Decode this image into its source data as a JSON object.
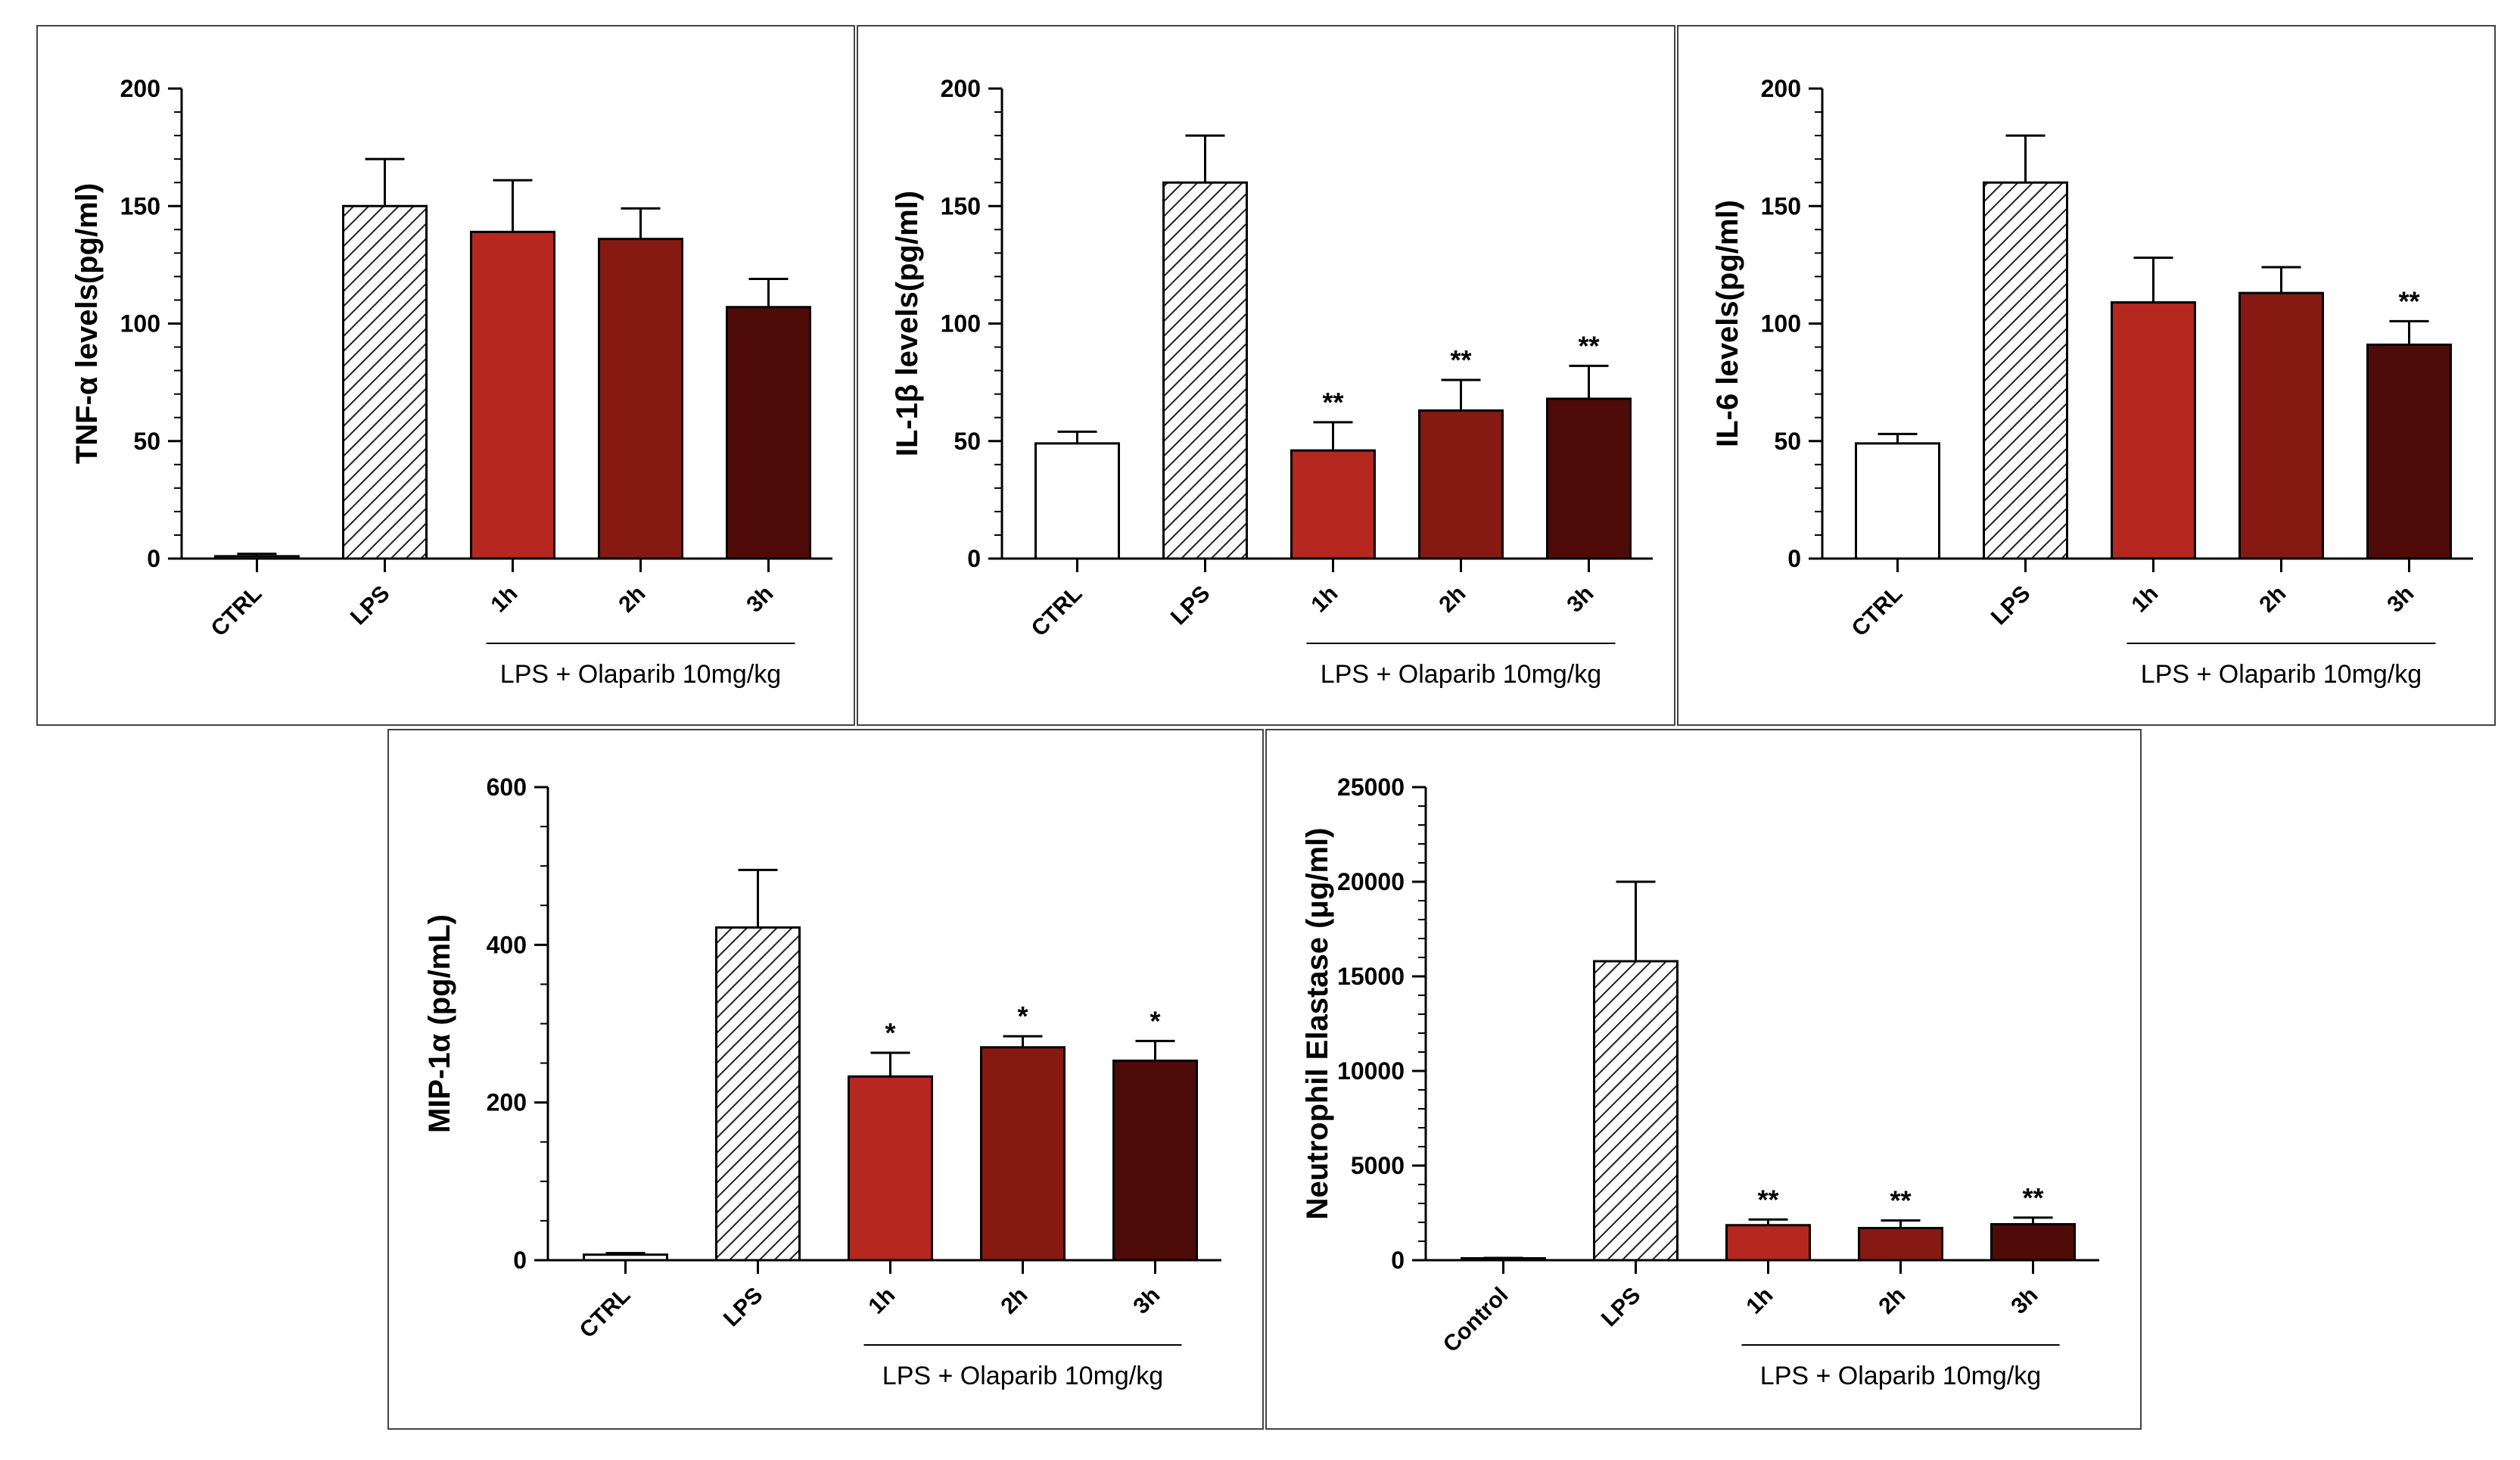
{
  "colors": {
    "ctrl": "#ffffff",
    "h1": "#b5271f",
    "h2": "#861911",
    "h3": "#4f0b08",
    "axis": "#000000",
    "hatch": "#222222"
  },
  "chart_data": [
    {
      "type": "bar",
      "ylabel": "TNF-α levels(pg/ml)",
      "categories": [
        "CTRL",
        "LPS",
        "1h",
        "2h",
        "3h"
      ],
      "values": [
        1,
        150,
        139,
        136,
        107
      ],
      "errors": [
        1,
        20,
        22,
        13,
        12
      ],
      "significance": [
        "",
        "",
        "",
        "",
        ""
      ],
      "yticks": [
        "0",
        "50",
        "100",
        "150",
        "200"
      ],
      "ylim": [
        0,
        200
      ],
      "group_label": "LPS + Olaparib 10mg/kg"
    },
    {
      "type": "bar",
      "ylabel": "IL-1β levels(pg/ml)",
      "categories": [
        "CTRL",
        "LPS",
        "1h",
        "2h",
        "3h"
      ],
      "values": [
        49,
        160,
        46,
        63,
        68
      ],
      "errors": [
        5,
        20,
        12,
        13,
        14
      ],
      "significance": [
        "",
        "",
        "**",
        "**",
        "**"
      ],
      "yticks": [
        "0",
        "50",
        "100",
        "150",
        "200"
      ],
      "ylim": [
        0,
        200
      ],
      "group_label": "LPS + Olaparib 10mg/kg"
    },
    {
      "type": "bar",
      "ylabel": "IL-6 levels(pg/ml)",
      "categories": [
        "CTRL",
        "LPS",
        "1h",
        "2h",
        "3h"
      ],
      "values": [
        49,
        160,
        109,
        113,
        91
      ],
      "errors": [
        4,
        20,
        19,
        11,
        10
      ],
      "significance": [
        "",
        "",
        "",
        "",
        "**"
      ],
      "yticks": [
        "0",
        "50",
        "100",
        "150",
        "200"
      ],
      "ylim": [
        0,
        200
      ],
      "group_label": "LPS + Olaparib 10mg/kg"
    },
    {
      "type": "bar",
      "ylabel": "MIP-1α (pg/mL)",
      "categories": [
        "CTRL",
        "LPS",
        "1h",
        "2h",
        "3h"
      ],
      "values": [
        7,
        422,
        233,
        270,
        253
      ],
      "errors": [
        2,
        73,
        30,
        14,
        25
      ],
      "significance": [
        "",
        "",
        "*",
        "*",
        "*"
      ],
      "yticks": [
        "0",
        "200",
        "400",
        "600"
      ],
      "ylim": [
        0,
        600
      ],
      "group_label": "LPS + Olaparib 10mg/kg"
    },
    {
      "type": "bar",
      "ylabel": "Neutrophil Elastase (μg/ml)",
      "categories": [
        "Control",
        "LPS",
        "1h",
        "2h",
        "3h"
      ],
      "values": [
        100,
        15800,
        1850,
        1700,
        1900
      ],
      "errors": [
        20,
        4200,
        300,
        400,
        350
      ],
      "significance": [
        "",
        "",
        "**",
        "**",
        "**"
      ],
      "yticks": [
        "0",
        "5000",
        "10000",
        "15000",
        "20000",
        "25000"
      ],
      "ylim": [
        0,
        25000
      ],
      "group_label": "LPS + Olaparib 10mg/kg"
    }
  ]
}
